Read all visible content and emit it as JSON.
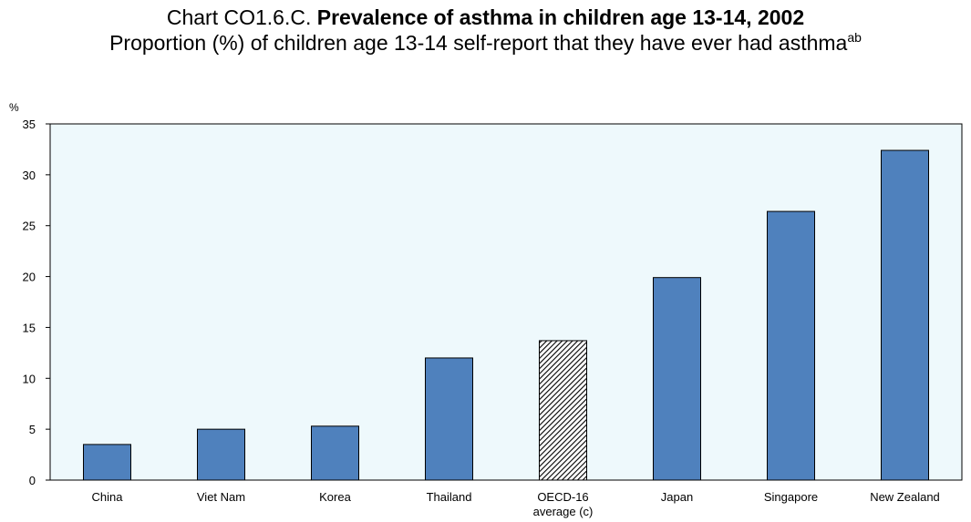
{
  "title": {
    "prefix": "Chart CO1.6.C.",
    "bold": "Prevalence of asthma in children age 13-14, 2002"
  },
  "subtitle": {
    "text": "Proportion (%) of children age 13-14 self-report that they have ever had asthma",
    "superscript": "ab"
  },
  "colors": {
    "bar": "#4f81bd",
    "plot_background": "#eef9fc",
    "hatched_bar": "#000000"
  },
  "chart_data": {
    "type": "bar",
    "ylabel": "%",
    "xlabel": "",
    "ylim": [
      0,
      35
    ],
    "yticks": [
      0,
      5,
      10,
      15,
      20,
      25,
      30,
      35
    ],
    "grid": false,
    "categories": [
      "China",
      "Viet Nam",
      "Korea",
      "Thailand",
      "OECD-16 average (c)",
      "Japan",
      "Singapore",
      "New Zealand"
    ],
    "category_lines": [
      [
        "China"
      ],
      [
        "Viet Nam"
      ],
      [
        "Korea"
      ],
      [
        "Thailand"
      ],
      [
        "OECD-16",
        "average (c)"
      ],
      [
        "Japan"
      ],
      [
        "Singapore"
      ],
      [
        "New Zealand"
      ]
    ],
    "values": [
      3.5,
      5.0,
      5.3,
      12.0,
      13.7,
      19.9,
      26.4,
      32.4
    ],
    "hatched": [
      false,
      false,
      false,
      false,
      true,
      false,
      false,
      false
    ]
  }
}
